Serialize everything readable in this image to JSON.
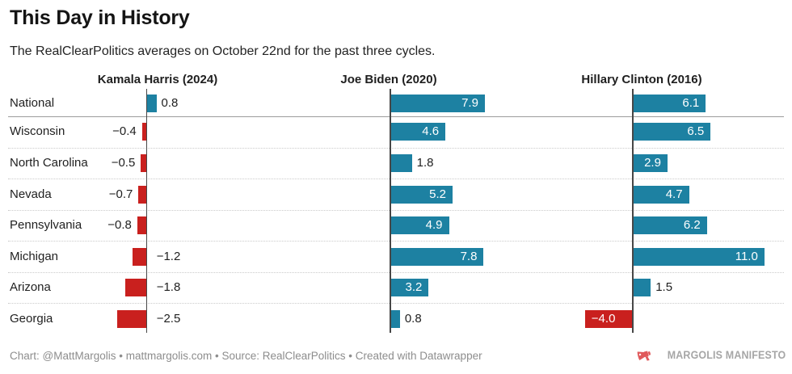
{
  "page": {
    "title": "This Day in History",
    "subtitle": "The RealClearPolitics averages on October 22nd for the past three cycles."
  },
  "footer": {
    "byline": "Chart: @MattMargolis • mattmargolis.com • Source: RealClearPolitics • Created with Datawrapper",
    "logo": {
      "text": "MARGOLIS MANIFESTO",
      "icon": "megaphone-icon",
      "icon_color": "#e0595b",
      "text_color": "#a6a6a6"
    }
  },
  "chart_data": {
    "type": "bar",
    "orientation": "horizontal",
    "title": "This Day in History",
    "subtitle": "The RealClearPolitics averages on October 22nd for the past three cycles.",
    "categories": [
      "National",
      "Wisconsin",
      "North Carolina",
      "Nevada",
      "Pennsylvania",
      "Michigan",
      "Arizona",
      "Georgia"
    ],
    "series": [
      {
        "name": "Kamala Harris (2024)",
        "values": [
          0.8,
          -0.4,
          -0.5,
          -0.7,
          -0.8,
          -1.2,
          -1.8,
          -2.5
        ],
        "label_pos": [
          "outside",
          "outside-left",
          "outside-left",
          "outside-left",
          "outside-left",
          "zero-right",
          "zero-right",
          "zero-right"
        ]
      },
      {
        "name": "Joe Biden (2020)",
        "values": [
          7.9,
          4.6,
          1.8,
          5.2,
          4.9,
          7.8,
          3.2,
          0.8
        ],
        "label_pos": [
          "inside",
          "inside",
          "outside",
          "inside",
          "inside",
          "inside",
          "inside",
          "outside"
        ]
      },
      {
        "name": "Hillary Clinton (2016)",
        "values": [
          6.1,
          6.5,
          2.9,
          4.7,
          6.2,
          11.0,
          1.5,
          -4.0
        ],
        "label_pos": [
          "inside",
          "inside",
          "inside",
          "inside",
          "inside",
          "inside",
          "outside",
          "inside-left"
        ]
      }
    ],
    "positive_color": "#1d81a2",
    "negative_color": "#c9201e",
    "value_decimals": 1,
    "grid": "row-separators",
    "row_separator_first": "solid",
    "row_separator_rest": "dotted",
    "legend_position": "column-headers",
    "value_axis_hidden": true
  }
}
